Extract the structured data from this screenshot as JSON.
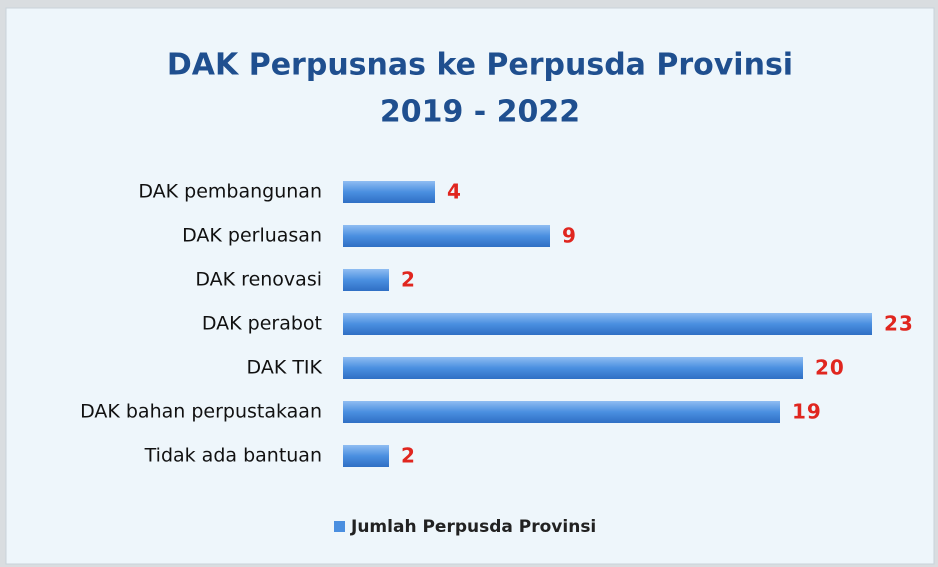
{
  "chart_data": {
    "type": "bar",
    "orientation": "horizontal",
    "title": "DAK Perpusnas ke Perpusda Provinsi",
    "subtitle": "2019 - 2022",
    "categories": [
      "DAK pembangunan",
      "DAK perluasan",
      "DAK renovasi",
      "DAK perabot",
      "DAK TIK",
      "DAK bahan perpustakaan",
      "Tidak ada bantuan"
    ],
    "series": [
      {
        "name": "Jumlah Perpusda Provinsi",
        "color": "#4a8fe0",
        "values": [
          4,
          9,
          2,
          23,
          20,
          19,
          2
        ]
      }
    ],
    "legend": "bottom"
  }
}
